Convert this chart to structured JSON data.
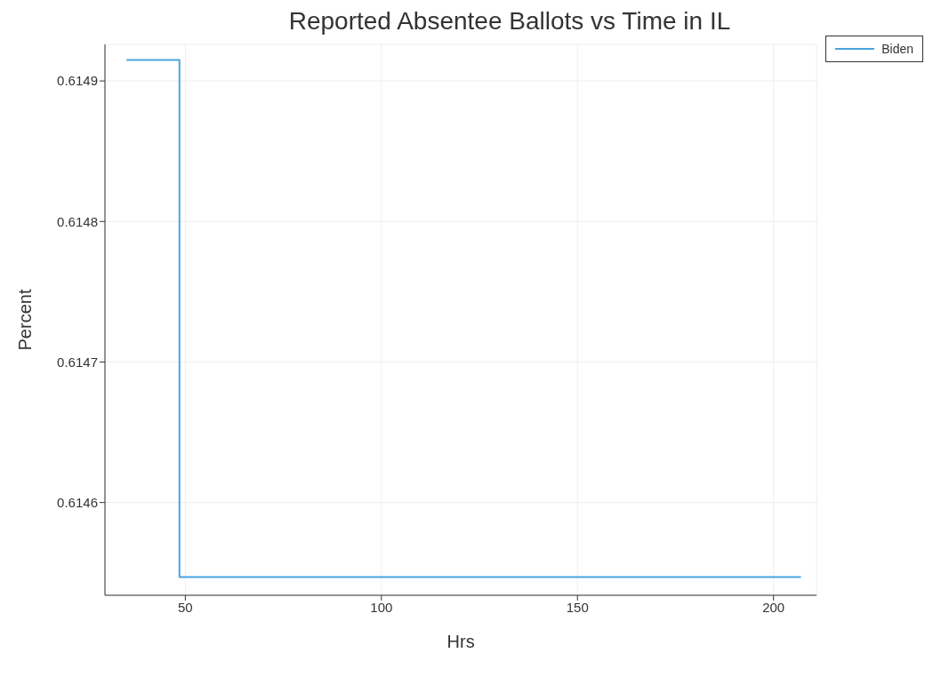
{
  "chart_data": {
    "type": "step",
    "title": "Reported Absentee Ballots vs Time in IL",
    "xlabel": "Hrs",
    "ylabel": "Percent",
    "x": [
      35,
      48.5,
      207
    ],
    "series": [
      {
        "name": "Biden",
        "color": "#4aa3df",
        "values": [
          0.614915,
          0.614547,
          0.614547
        ]
      }
    ],
    "xlim": [
      29.5,
      211
    ],
    "xticks": [
      50,
      100,
      150,
      200
    ],
    "ylim": [
      0.614534,
      0.614926
    ],
    "yticks": [
      0.6146,
      0.6147,
      0.6148,
      0.6149
    ],
    "grid": true,
    "legend": "top right"
  }
}
